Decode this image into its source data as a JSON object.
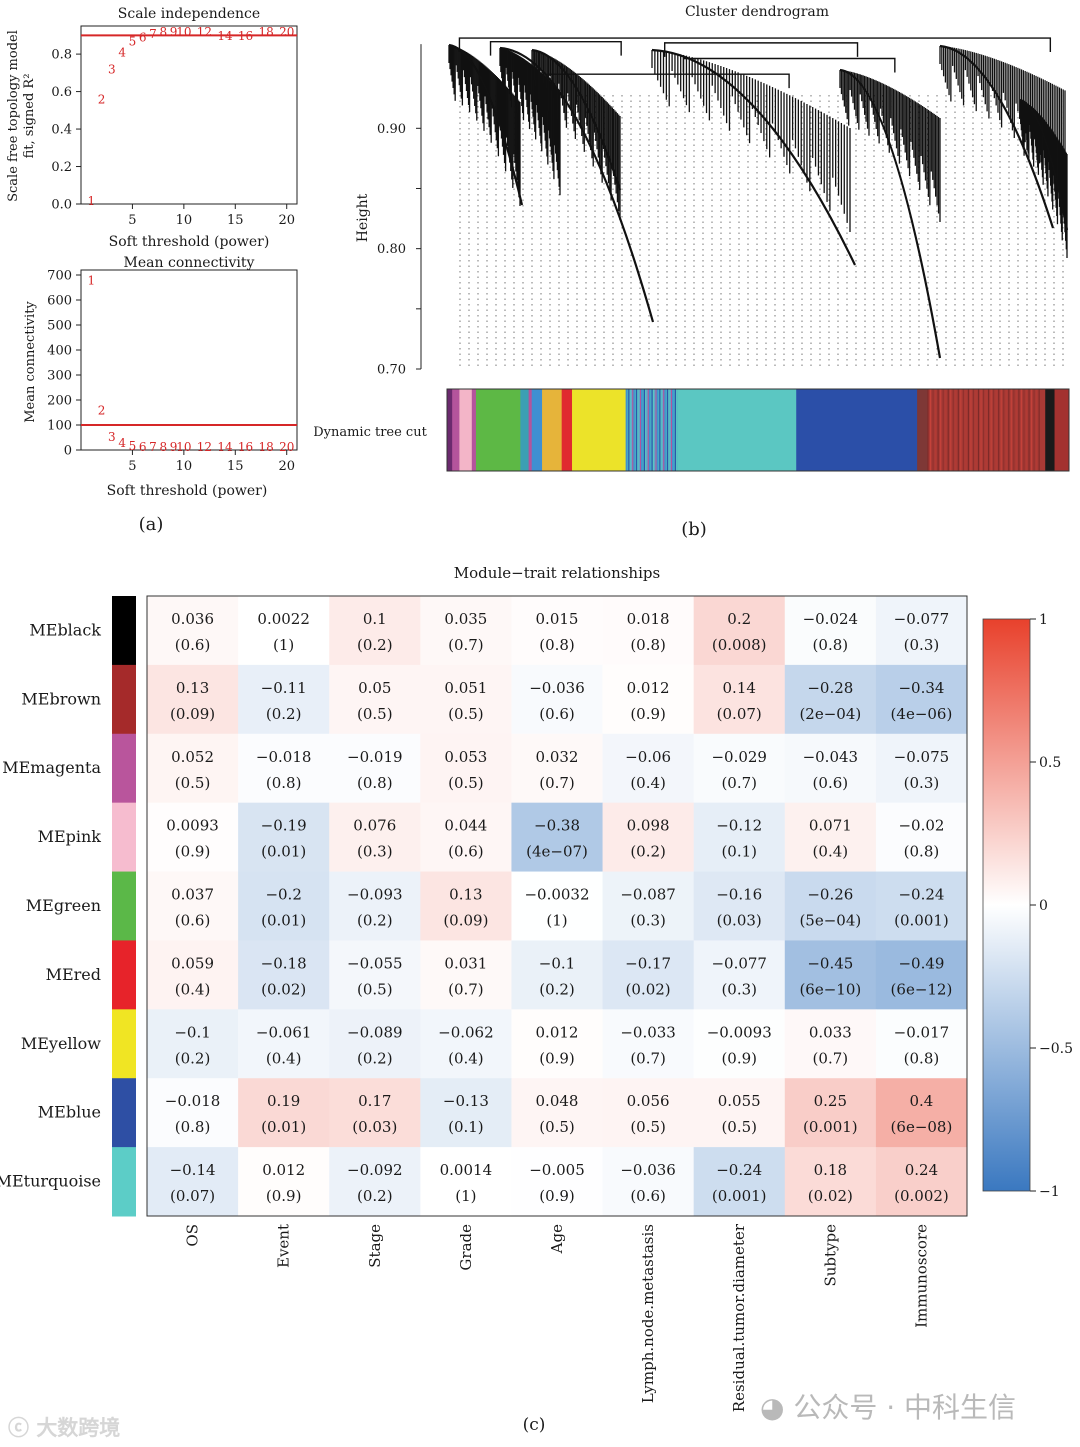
{
  "panel_labels": {
    "a": "(a)",
    "b": "(b)",
    "c": "(c)"
  },
  "watermarks": {
    "left": "大数跨境",
    "right": "公众号 · 中科生信"
  },
  "colors": {
    "threshold_line": "#d62728",
    "points": "#d62728",
    "axis": "#222222"
  },
  "chart_data": [
    {
      "id": "scale-independence",
      "type": "scatter",
      "title": "Scale independence",
      "xlabel": "Soft threshold (power)",
      "ylabel_line1": "Scale free topology model",
      "ylabel_line2": "fit, signed R²",
      "xlim": [
        0,
        21
      ],
      "ylim": [
        0,
        0.95
      ],
      "xticks": [
        5,
        10,
        15,
        20
      ],
      "yticks": [
        0.0,
        0.2,
        0.4,
        0.6,
        0.8
      ],
      "hline": 0.9,
      "points": [
        {
          "label": "1",
          "x": 1,
          "y": 0.02
        },
        {
          "label": "2",
          "x": 2,
          "y": 0.56
        },
        {
          "label": "3",
          "x": 3,
          "y": 0.72
        },
        {
          "label": "4",
          "x": 4,
          "y": 0.81
        },
        {
          "label": "5",
          "x": 5,
          "y": 0.87
        },
        {
          "label": "6",
          "x": 6,
          "y": 0.89
        },
        {
          "label": "7",
          "x": 7,
          "y": 0.91
        },
        {
          "label": "8",
          "x": 8,
          "y": 0.92
        },
        {
          "label": "9",
          "x": 9,
          "y": 0.92
        },
        {
          "label": "10",
          "x": 10,
          "y": 0.92
        },
        {
          "label": "12",
          "x": 12,
          "y": 0.92
        },
        {
          "label": "14",
          "x": 14,
          "y": 0.9
        },
        {
          "label": "16",
          "x": 16,
          "y": 0.9
        },
        {
          "label": "18",
          "x": 18,
          "y": 0.92
        },
        {
          "label": "20",
          "x": 20,
          "y": 0.92
        }
      ]
    },
    {
      "id": "mean-connectivity",
      "type": "scatter",
      "title": "Mean connectivity",
      "xlabel": "Soft threshold (power)",
      "ylabel_line1": "Mean connectivity",
      "xlim": [
        0,
        21
      ],
      "ylim": [
        0,
        720
      ],
      "xticks": [
        5,
        10,
        15,
        20
      ],
      "yticks": [
        0,
        100,
        200,
        300,
        400,
        500,
        600,
        700
      ],
      "hline": 100,
      "points": [
        {
          "label": "1",
          "x": 1,
          "y": 680
        },
        {
          "label": "2",
          "x": 2,
          "y": 160
        },
        {
          "label": "3",
          "x": 3,
          "y": 55
        },
        {
          "label": "4",
          "x": 4,
          "y": 30
        },
        {
          "label": "5",
          "x": 5,
          "y": 18
        },
        {
          "label": "6",
          "x": 6,
          "y": 14
        },
        {
          "label": "7",
          "x": 7,
          "y": 14
        },
        {
          "label": "8",
          "x": 8,
          "y": 14
        },
        {
          "label": "9",
          "x": 9,
          "y": 14
        },
        {
          "label": "10",
          "x": 10,
          "y": 14
        },
        {
          "label": "12",
          "x": 12,
          "y": 14
        },
        {
          "label": "14",
          "x": 14,
          "y": 14
        },
        {
          "label": "16",
          "x": 16,
          "y": 14
        },
        {
          "label": "18",
          "x": 18,
          "y": 14
        },
        {
          "label": "20",
          "x": 20,
          "y": 14
        }
      ]
    },
    {
      "id": "cluster-dendrogram",
      "type": "dendrogram",
      "title": "Cluster dendrogram",
      "ylabel": "Height",
      "ylim": [
        0.7,
        0.99
      ],
      "yticks": [
        0.7,
        0.8,
        0.9
      ],
      "ytick_labels": [
        "0.70",
        "0.80",
        "0.90"
      ],
      "color_bar_label": "Dynamic tree cut",
      "merges": [
        {
          "from": [
            0.02,
            0.97
          ],
          "height": 0.975
        },
        {
          "from": [
            0.07,
            0.28
          ],
          "height": 0.972
        },
        {
          "from": [
            0.38,
            0.72
          ],
          "height": 0.958
        },
        {
          "from": [
            0.16,
            0.55
          ],
          "height": 0.945
        },
        {
          "from": [
            0.35,
            0.66
          ],
          "height": 0.971
        }
      ],
      "module_segments": [
        {
          "color": "#6b2a6e",
          "start": 0.0,
          "end": 0.005
        },
        {
          "color": "#b4549c",
          "start": 0.005,
          "end": 0.012
        },
        {
          "color": "#f3b5c8",
          "start": 0.012,
          "end": 0.024
        },
        {
          "color": "#b4549c",
          "start": 0.024,
          "end": 0.028
        },
        {
          "color": "#5db845",
          "start": 0.028,
          "end": 0.071
        },
        {
          "color": "#3c9fb3",
          "start": 0.071,
          "end": 0.079
        },
        {
          "color": "#b4549c",
          "start": 0.079,
          "end": 0.082
        },
        {
          "color": "#3f8fd2",
          "start": 0.082,
          "end": 0.092
        },
        {
          "color": "#e6b43a",
          "start": 0.092,
          "end": 0.111
        },
        {
          "color": "#e02a2f",
          "start": 0.111,
          "end": 0.121
        },
        {
          "color": "#ece329",
          "start": 0.121,
          "end": 0.173
        },
        {
          "color": "#46a9c4",
          "start": 0.173,
          "end": 0.223
        },
        {
          "color": "#5bc7c2",
          "start": 0.223,
          "end": 0.338
        },
        {
          "color": "#2b4fa8",
          "start": 0.338,
          "end": 0.455
        },
        {
          "color": "#7e3836",
          "start": 0.455,
          "end": 0.465
        },
        {
          "color": "#a93a35",
          "start": 0.465,
          "end": 0.579
        },
        {
          "color": "#1a1a1a",
          "start": 0.579,
          "end": 0.588
        },
        {
          "color": "#a33230",
          "start": 0.588,
          "end": 0.602
        }
      ]
    },
    {
      "id": "module-trait",
      "type": "heatmap",
      "title": "Module−trait relationships",
      "rows": [
        "MEblack",
        "MEbrown",
        "MEmagenta",
        "MEpink",
        "MEgreen",
        "MEred",
        "MEyellow",
        "MEblue",
        "MEturquoise"
      ],
      "row_colors": [
        "#000000",
        "#a52a2a",
        "#b9559c",
        "#f6bccf",
        "#5bb848",
        "#e7232a",
        "#f0e523",
        "#2e4fa4",
        "#5ccdc7"
      ],
      "columns": [
        "OS",
        "Event",
        "Stage",
        "Grade",
        "Age",
        "Lymph.node.metastasis",
        "Residual.tumor.diameter",
        "Subtype",
        "Immunoscore"
      ],
      "values": [
        [
          0.036,
          0.0022,
          0.1,
          0.035,
          0.015,
          0.018,
          0.2,
          -0.024,
          -0.077
        ],
        [
          0.13,
          -0.11,
          0.05,
          0.051,
          -0.036,
          0.012,
          0.14,
          -0.28,
          -0.34
        ],
        [
          0.052,
          -0.018,
          -0.019,
          0.053,
          0.032,
          -0.06,
          -0.029,
          -0.043,
          -0.075
        ],
        [
          0.0093,
          -0.19,
          0.076,
          0.044,
          -0.38,
          0.098,
          -0.12,
          0.071,
          -0.02
        ],
        [
          0.037,
          -0.2,
          -0.093,
          0.13,
          -0.0032,
          -0.087,
          -0.16,
          -0.26,
          -0.24
        ],
        [
          0.059,
          -0.18,
          -0.055,
          0.031,
          -0.1,
          -0.17,
          -0.077,
          -0.45,
          -0.49
        ],
        [
          -0.1,
          -0.061,
          -0.089,
          -0.062,
          0.012,
          -0.033,
          -0.0093,
          0.033,
          -0.017
        ],
        [
          -0.018,
          0.19,
          0.17,
          -0.13,
          0.048,
          0.056,
          0.055,
          0.25,
          0.4
        ],
        [
          -0.14,
          0.012,
          -0.092,
          0.0014,
          -0.005,
          -0.036,
          -0.24,
          0.18,
          0.24
        ]
      ],
      "cell_text": [
        [
          "0.036",
          "0.0022",
          "0.1",
          "0.035",
          "0.015",
          "0.018",
          "0.2",
          "−0.024",
          "−0.077"
        ],
        [
          "0.13",
          "−0.11",
          "0.05",
          "0.051",
          "−0.036",
          "0.012",
          "0.14",
          "−0.28",
          "−0.34"
        ],
        [
          "0.052",
          "−0.018",
          "−0.019",
          "0.053",
          "0.032",
          "−0.06",
          "−0.029",
          "−0.043",
          "−0.075"
        ],
        [
          "0.0093",
          "−0.19",
          "0.076",
          "0.044",
          "−0.38",
          "0.098",
          "−0.12",
          "0.071",
          "−0.02"
        ],
        [
          "0.037",
          "−0.2",
          "−0.093",
          "0.13",
          "−0.0032",
          "−0.087",
          "−0.16",
          "−0.26",
          "−0.24"
        ],
        [
          "0.059",
          "−0.18",
          "−0.055",
          "0.031",
          "−0.1",
          "−0.17",
          "−0.077",
          "−0.45",
          "−0.49"
        ],
        [
          "−0.1",
          "−0.061",
          "−0.089",
          "−0.062",
          "0.012",
          "−0.033",
          "−0.0093",
          "0.033",
          "−0.017"
        ],
        [
          "−0.018",
          "0.19",
          "0.17",
          "−0.13",
          "0.048",
          "0.056",
          "0.055",
          "0.25",
          "0.4"
        ],
        [
          "−0.14",
          "0.012",
          "−0.092",
          "0.0014",
          "−0.005",
          "−0.036",
          "−0.24",
          "0.18",
          "0.24"
        ]
      ],
      "pvalues": [
        [
          "(0.6)",
          "(1)",
          "(0.2)",
          "(0.7)",
          "(0.8)",
          "(0.8)",
          "(0.008)",
          "(0.8)",
          "(0.3)"
        ],
        [
          "(0.09)",
          "(0.2)",
          "(0.5)",
          "(0.5)",
          "(0.6)",
          "(0.9)",
          "(0.07)",
          "(2e−04)",
          "(4e−06)"
        ],
        [
          "(0.5)",
          "(0.8)",
          "(0.8)",
          "(0.5)",
          "(0.7)",
          "(0.4)",
          "(0.7)",
          "(0.6)",
          "(0.3)"
        ],
        [
          "(0.9)",
          "(0.01)",
          "(0.3)",
          "(0.6)",
          "(4e−07)",
          "(0.2)",
          "(0.1)",
          "(0.4)",
          "(0.8)"
        ],
        [
          "(0.6)",
          "(0.01)",
          "(0.2)",
          "(0.09)",
          "(1)",
          "(0.3)",
          "(0.03)",
          "(5e−04)",
          "(0.001)"
        ],
        [
          "(0.4)",
          "(0.02)",
          "(0.5)",
          "(0.7)",
          "(0.2)",
          "(0.02)",
          "(0.3)",
          "(6e−10)",
          "(6e−12)"
        ],
        [
          "(0.2)",
          "(0.4)",
          "(0.2)",
          "(0.4)",
          "(0.9)",
          "(0.7)",
          "(0.9)",
          "(0.7)",
          "(0.8)"
        ],
        [
          "(0.8)",
          "(0.01)",
          "(0.03)",
          "(0.1)",
          "(0.5)",
          "(0.5)",
          "(0.5)",
          "(0.001)",
          "(6e−08)"
        ],
        [
          "(0.07)",
          "(0.9)",
          "(0.2)",
          "(1)",
          "(0.9)",
          "(0.6)",
          "(0.001)",
          "(0.02)",
          "(0.002)"
        ]
      ],
      "colorscale": {
        "min": -1,
        "max": 1,
        "low": "#3a78c0",
        "mid": "#ffffff",
        "high": "#e8412c"
      },
      "legend_ticks": [
        1,
        0.5,
        0,
        -0.5,
        -1
      ],
      "legend_labels": [
        "1",
        "0.5",
        "0",
        "−0.5",
        "−1"
      ]
    }
  ]
}
